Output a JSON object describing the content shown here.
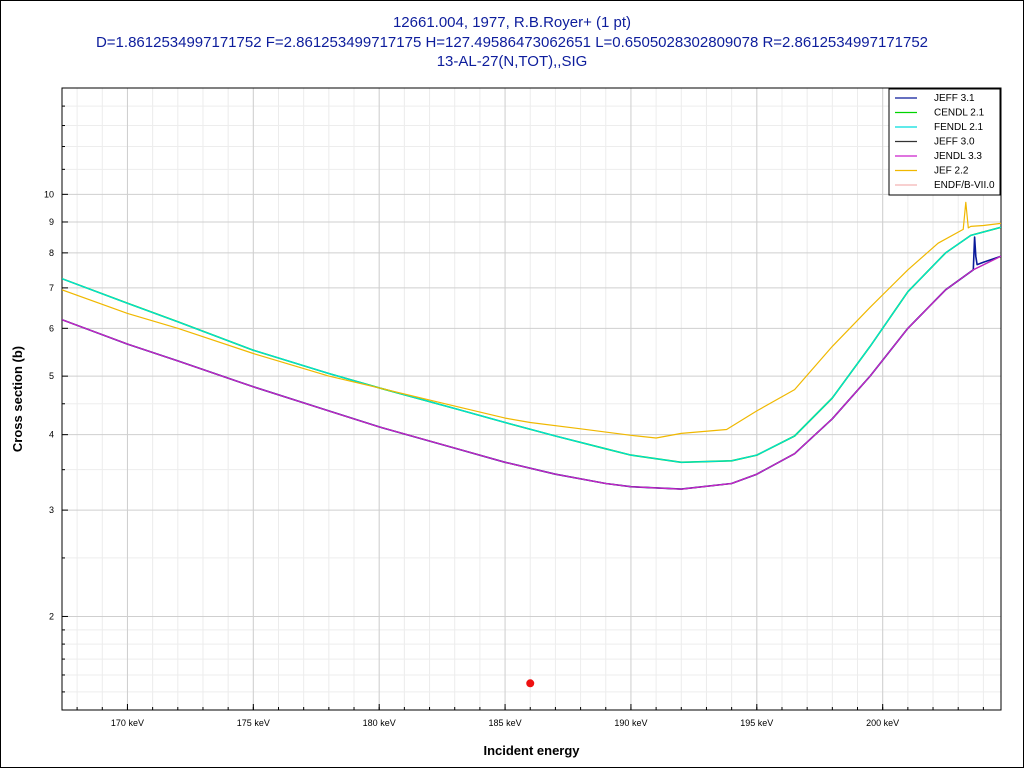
{
  "title": {
    "line1": "12661.004, 1977, R.B.Royer+ (1 pt)",
    "line2": "D=1.8612534997171752 F=2.861253499717175 H=127.49586473062651 L=0.6505028302809078 R=2.8612534997171752",
    "line3": "13-AL-27(N,TOT),,SIG"
  },
  "chart_data": {
    "type": "line",
    "xlabel": "Incident energy",
    "ylabel": "Cross section (b)",
    "xlim": [
      167.4,
      204.7
    ],
    "ylim": [
      1.4,
      15
    ],
    "yscale": "log",
    "grid": true,
    "legend_position": "top-right",
    "x_ticks": [
      {
        "value": 170,
        "label": "170 keV"
      },
      {
        "value": 175,
        "label": "175 keV"
      },
      {
        "value": 180,
        "label": "180 keV"
      },
      {
        "value": 185,
        "label": "185 keV"
      },
      {
        "value": 190,
        "label": "190 keV"
      },
      {
        "value": 195,
        "label": "195 keV"
      },
      {
        "value": 200,
        "label": "200 keV"
      }
    ],
    "y_ticks": [
      {
        "value": 2,
        "label": "2"
      },
      {
        "value": 3,
        "label": "3"
      },
      {
        "value": 4,
        "label": "4"
      },
      {
        "value": 5,
        "label": "5"
      },
      {
        "value": 6,
        "label": "6"
      },
      {
        "value": 7,
        "label": "7"
      },
      {
        "value": 8,
        "label": "8"
      },
      {
        "value": 9,
        "label": "9"
      },
      {
        "value": 10,
        "label": "10"
      }
    ],
    "series": [
      {
        "name": "JEFF 3.1",
        "color": "#0a1a9a",
        "x": [
          167.4,
          170,
          172,
          175,
          178,
          180,
          183,
          185,
          187,
          189,
          190,
          192,
          194,
          195,
          196.5,
          198,
          199.5,
          201,
          202.5,
          203.6,
          203.65,
          203.7,
          203.75,
          204,
          204.7
        ],
        "y": [
          6.2,
          5.65,
          5.3,
          4.8,
          4.38,
          4.12,
          3.8,
          3.6,
          3.44,
          3.32,
          3.28,
          3.25,
          3.32,
          3.44,
          3.72,
          4.25,
          5.0,
          6.0,
          6.95,
          7.5,
          8.5,
          7.9,
          7.65,
          7.72,
          7.9
        ]
      },
      {
        "name": "CENDL 2.1",
        "color": "#00d400",
        "x": [
          167.4,
          170,
          172,
          175,
          178,
          180,
          183,
          185,
          187,
          189,
          190,
          192,
          194,
          195,
          196.5,
          198,
          199.5,
          201,
          202.5,
          203.5,
          204.7
        ],
        "y": [
          7.25,
          6.6,
          6.15,
          5.52,
          5.05,
          4.78,
          4.42,
          4.19,
          3.98,
          3.79,
          3.7,
          3.6,
          3.62,
          3.7,
          3.98,
          4.6,
          5.6,
          6.9,
          8.0,
          8.55,
          8.82
        ]
      },
      {
        "name": "FENDL 2.1",
        "color": "#00dddd",
        "x": [
          167.4,
          170,
          172,
          175,
          178,
          180,
          183,
          185,
          187,
          189,
          190,
          192,
          194,
          195,
          196.5,
          198,
          199.5,
          201,
          202.5,
          203.5,
          204.7
        ],
        "y": [
          7.25,
          6.6,
          6.15,
          5.52,
          5.05,
          4.78,
          4.42,
          4.19,
          3.98,
          3.79,
          3.7,
          3.6,
          3.62,
          3.7,
          3.98,
          4.6,
          5.6,
          6.9,
          8.0,
          8.55,
          8.82
        ]
      },
      {
        "name": "JEFF 3.0",
        "color": "#333333",
        "x": [
          167.4,
          170,
          172,
          175,
          178,
          180,
          183,
          185,
          187,
          189,
          190,
          192,
          194,
          195,
          196.5,
          198,
          199.5,
          201,
          202.5,
          203.6,
          204.7
        ],
        "y": [
          6.2,
          5.65,
          5.3,
          4.8,
          4.38,
          4.12,
          3.8,
          3.6,
          3.44,
          3.32,
          3.28,
          3.25,
          3.32,
          3.44,
          3.72,
          4.25,
          5.0,
          6.0,
          6.95,
          7.5,
          7.9
        ]
      },
      {
        "name": "JENDL 3.3",
        "color": "#cc22cc",
        "x": [
          167.4,
          170,
          172,
          175,
          178,
          180,
          183,
          185,
          187,
          189,
          190,
          192,
          194,
          195,
          196.5,
          198,
          199.5,
          201,
          202.5,
          203.6,
          204.7
        ],
        "y": [
          6.2,
          5.65,
          5.3,
          4.8,
          4.38,
          4.12,
          3.8,
          3.6,
          3.44,
          3.32,
          3.28,
          3.25,
          3.32,
          3.44,
          3.72,
          4.25,
          5.0,
          6.0,
          6.95,
          7.5,
          7.9
        ]
      },
      {
        "name": "JEF 2.2",
        "color": "#f0b800",
        "x": [
          167.4,
          170,
          172,
          175,
          178,
          180,
          183,
          185,
          186,
          188,
          190,
          191,
          192,
          193.8,
          195,
          196.5,
          198,
          199.5,
          201,
          202.2,
          203.2,
          203.3,
          203.4,
          203.5,
          204,
          204.7
        ],
        "y": [
          6.95,
          6.35,
          6.0,
          5.45,
          5.0,
          4.78,
          4.46,
          4.26,
          4.19,
          4.09,
          3.99,
          3.95,
          4.02,
          4.08,
          4.38,
          4.75,
          5.6,
          6.5,
          7.5,
          8.3,
          8.75,
          9.7,
          8.8,
          8.85,
          8.88,
          8.95
        ]
      },
      {
        "name": "ENDF/B-VII.0",
        "color": "#f4b4b4",
        "x": [],
        "y": []
      }
    ],
    "points": [
      {
        "name": "12661.004, 1977, R.B.Royer+ (1 pt)",
        "x": 186.0,
        "y": 1.55,
        "color": "#ee1111"
      }
    ]
  }
}
